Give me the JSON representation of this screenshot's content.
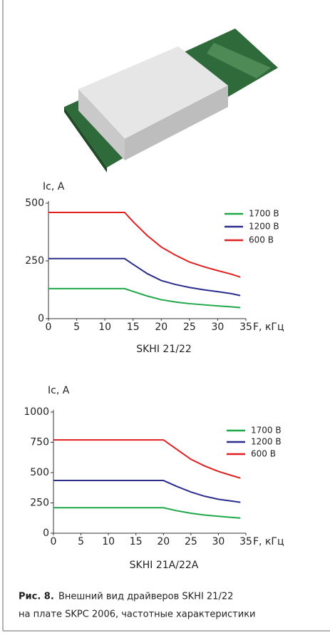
{
  "chart_data": [
    {
      "type": "line",
      "title": "SKHI 21/22",
      "ylabel": "Ic, A",
      "xlabel": "F, кГц",
      "xlim": [
        0,
        35
      ],
      "xticks": [
        0,
        5,
        10,
        15,
        20,
        25,
        30,
        35
      ],
      "ylim": [
        0,
        500
      ],
      "yticks": [
        0,
        250,
        500
      ],
      "x": [
        0,
        13.5,
        15,
        17.5,
        20,
        22.5,
        25,
        27.5,
        30,
        32.5,
        34
      ],
      "series": [
        {
          "name": "1700 В",
          "color": "#1fa84a",
          "values": [
            130,
            130,
            118,
            98,
            82,
            72,
            65,
            60,
            55,
            51,
            48
          ]
        },
        {
          "name": "1200 В",
          "color": "#2b2d8c",
          "values": [
            260,
            260,
            235,
            195,
            165,
            148,
            135,
            125,
            117,
            108,
            100
          ]
        },
        {
          "name": "600 В",
          "color": "#e02020",
          "values": [
            460,
            460,
            420,
            360,
            310,
            275,
            245,
            225,
            208,
            192,
            180
          ]
        }
      ]
    },
    {
      "type": "line",
      "title": "SKHI 21A/22A",
      "ylabel": "Ic, A",
      "xlabel": "F, кГц",
      "xlim": [
        0,
        35
      ],
      "xticks": [
        0,
        5,
        10,
        15,
        20,
        25,
        30,
        35
      ],
      "ylim": [
        0,
        1000
      ],
      "yticks": [
        0,
        250,
        500,
        750,
        1000
      ],
      "x": [
        0,
        20,
        22.5,
        25,
        27.5,
        30,
        32.5,
        34
      ],
      "series": [
        {
          "name": "1700 В",
          "color": "#1fa84a",
          "values": [
            210,
            210,
            185,
            165,
            150,
            140,
            130,
            125
          ]
        },
        {
          "name": "1200 В",
          "color": "#2b2d8c",
          "values": [
            435,
            435,
            385,
            340,
            305,
            280,
            265,
            255
          ]
        },
        {
          "name": "600 В",
          "color": "#e02020",
          "values": [
            770,
            770,
            690,
            610,
            555,
            510,
            475,
            455
          ]
        }
      ]
    }
  ],
  "caption": {
    "label": "Рис. 8.",
    "lines": [
      "Внешний вид драйверов SKHI 21/22",
      "на плате SKPC 2006, частотные характеристики"
    ]
  }
}
